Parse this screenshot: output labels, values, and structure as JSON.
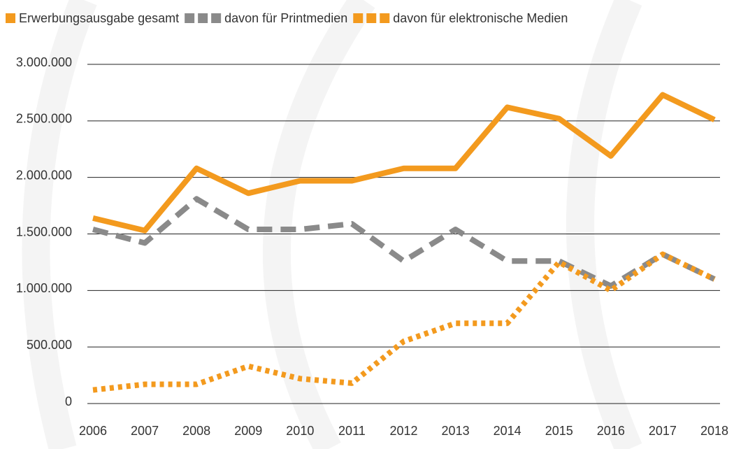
{
  "chart_data": {
    "type": "line",
    "categories": [
      "2006",
      "2007",
      "2008",
      "2009",
      "2010",
      "2011",
      "2012",
      "2013",
      "2014",
      "2015",
      "2016",
      "2017",
      "2018"
    ],
    "series": [
      {
        "name": "Erwerbungsausgabe gesamt",
        "color": "#f39a1e",
        "style": "solid",
        "values": [
          1640000,
          1530000,
          2080000,
          1860000,
          1970000,
          1970000,
          2080000,
          2080000,
          2620000,
          2520000,
          2190000,
          2730000,
          2510000
        ]
      },
      {
        "name": "davon für Printmedien",
        "color": "#8a8a8a",
        "style": "dashed",
        "values": [
          1540000,
          1420000,
          1810000,
          1540000,
          1540000,
          1590000,
          1260000,
          1540000,
          1260000,
          1260000,
          1040000,
          1320000,
          1100000
        ]
      },
      {
        "name": "davon für elektronische Medien",
        "color": "#f39a1e",
        "style": "dotted",
        "values": [
          120000,
          170000,
          170000,
          330000,
          220000,
          180000,
          550000,
          710000,
          710000,
          1250000,
          1000000,
          1320000,
          1100000
        ]
      }
    ],
    "ylim": [
      0,
      3000000
    ],
    "yticks": [
      0,
      {
        "value": 500000,
        "label": "500.000"
      },
      {
        "value": 1000000,
        "label": "1.000.000"
      },
      {
        "value": 1500000,
        "label": "1.500.000"
      },
      {
        "value": 2000000,
        "label": "2.000.000"
      },
      {
        "value": 2500000,
        "label": "2.500.000"
      },
      {
        "value": 3000000,
        "label": "3.000.000"
      }
    ],
    "grid": true
  }
}
